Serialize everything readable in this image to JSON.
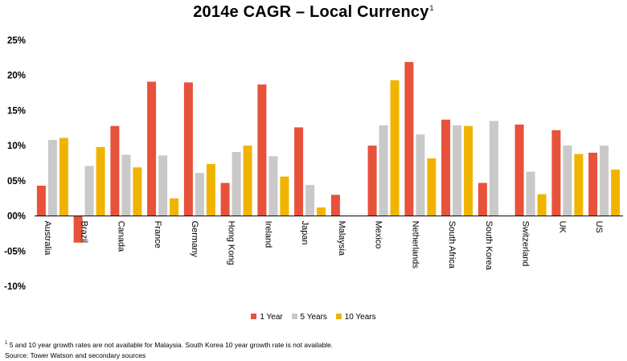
{
  "chart_data": {
    "type": "bar",
    "title": "2014e CAGR – Local Currency",
    "title_footnote_marker": "1",
    "categories": [
      "Australia",
      "Brazil",
      "Canada",
      "France",
      "Germany",
      "Hong Kong",
      "Ireland",
      "Japan",
      "Malaysia",
      "Mexico",
      "Netherlands",
      "South Africa",
      "South Korea",
      "Switzerland",
      "UK",
      "US"
    ],
    "series": [
      {
        "name": "1 Year",
        "color": "#e8523a",
        "values": [
          0.043,
          -0.038,
          0.128,
          0.191,
          0.19,
          0.047,
          0.187,
          0.126,
          0.03,
          0.1,
          0.219,
          0.137,
          0.047,
          0.13,
          0.122,
          0.09
        ]
      },
      {
        "name": "5 Years",
        "color": "#c9c9c9",
        "values": [
          0.108,
          0.071,
          0.087,
          0.086,
          0.061,
          0.091,
          0.085,
          0.044,
          null,
          0.129,
          0.116,
          0.129,
          0.135,
          0.063,
          0.1,
          0.1
        ]
      },
      {
        "name": "10 Years",
        "color": "#f0b400",
        "values": [
          0.111,
          0.098,
          0.069,
          0.025,
          0.074,
          0.1,
          0.056,
          0.012,
          null,
          0.193,
          0.082,
          0.128,
          null,
          0.031,
          0.088,
          0.066
        ]
      }
    ],
    "ylim": [
      -0.1,
      0.25
    ],
    "yticks": [
      "-10%",
      "-05%",
      "00%",
      "05%",
      "10%",
      "15%",
      "20%",
      "25%"
    ],
    "grid": false,
    "legend_position": "bottom"
  },
  "footnote": {
    "marker": "1",
    "text": " 5 and 10 year growth rates are not available for Malaysia. South Korea 10 year growth rate is not available.",
    "source": "Source: Tower Watson and secondary sources"
  }
}
